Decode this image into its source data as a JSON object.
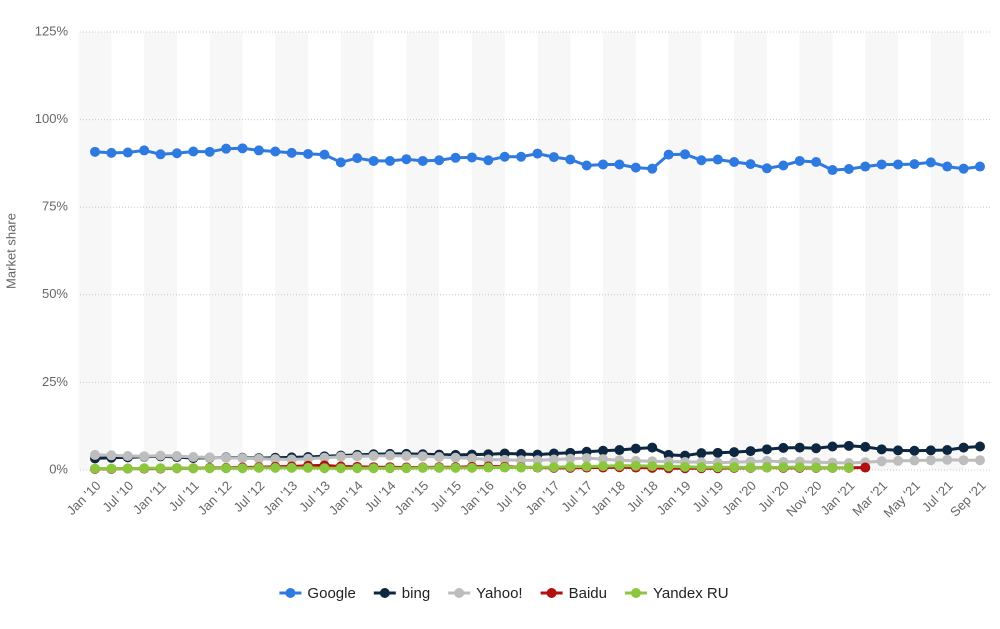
{
  "chart_data": {
    "type": "line",
    "y_label": "Market share",
    "categories": [
      "Jan '10",
      null,
      "Jul '10",
      null,
      "Jan '11",
      null,
      "Jul '11",
      null,
      "Jan '12",
      null,
      "Jul '12",
      null,
      "Jan '13",
      null,
      "Jul '13",
      null,
      "Jan '14",
      null,
      "Jul '14",
      null,
      "Jan '15",
      null,
      "Jul '15",
      null,
      "Jan '16",
      null,
      "Jul '16",
      null,
      "Jan '17",
      null,
      "Jul '17",
      null,
      "Jan '18",
      null,
      "Jul '18",
      null,
      "Jan '19",
      null,
      "Jul '19",
      null,
      "Jan '20",
      null,
      "Jul '20",
      null,
      "Nov '20",
      null,
      "Jan '21",
      null,
      "Mar '21",
      null,
      "May '21",
      null,
      "Jul '21",
      null,
      "Sep '21"
    ],
    "series": [
      {
        "name": "Google",
        "color": "#2f7ae0",
        "values": [
          90.8,
          90.5,
          90.6,
          91.2,
          90.1,
          90.4,
          90.9,
          90.8,
          91.7,
          91.8,
          91.2,
          90.9,
          90.5,
          90.2,
          90.0,
          87.8,
          89.0,
          88.2,
          88.2,
          88.7,
          88.2,
          88.4,
          89.1,
          89.2,
          88.4,
          89.4,
          89.4,
          90.3,
          89.3,
          88.6,
          86.9,
          87.2,
          87.2,
          86.3,
          86.0,
          90.0,
          90.1,
          88.4,
          88.6,
          87.9,
          87.3,
          86.1,
          86.9,
          88.2,
          87.9,
          85.6,
          85.9,
          86.6,
          87.2,
          87.2,
          87.3,
          87.8,
          86.6,
          86.0,
          86.6
        ]
      },
      {
        "name": "bing",
        "color": "#0e2740",
        "values": [
          3.3,
          3.5,
          3.6,
          3.8,
          3.9,
          3.7,
          3.4,
          3.5,
          3.6,
          3.5,
          3.4,
          3.5,
          3.6,
          3.7,
          3.9,
          4.1,
          4.3,
          4.5,
          4.6,
          4.6,
          4.5,
          4.4,
          4.3,
          4.4,
          4.5,
          4.7,
          4.6,
          4.4,
          4.7,
          4.9,
          5.2,
          5.5,
          5.7,
          6.1,
          6.4,
          4.3,
          4.1,
          4.8,
          4.9,
          5.1,
          5.4,
          5.9,
          6.3,
          6.4,
          6.2,
          6.7,
          6.9,
          6.6,
          5.9,
          5.6,
          5.5,
          5.6,
          5.7,
          6.4,
          6.7
        ]
      },
      {
        "name": "Yahoo!",
        "color": "#bdbdbd",
        "values": [
          4.3,
          4.2,
          4.0,
          3.9,
          4.1,
          4.0,
          3.7,
          3.6,
          3.5,
          3.4,
          3.2,
          3.1,
          3.0,
          3.2,
          3.5,
          3.8,
          3.9,
          4.0,
          4.1,
          4.0,
          3.9,
          3.7,
          3.5,
          3.3,
          3.0,
          2.9,
          2.8,
          2.8,
          3.0,
          3.2,
          3.4,
          3.1,
          2.8,
          2.6,
          2.5,
          2.4,
          2.3,
          2.2,
          2.1,
          2.2,
          2.4,
          2.6,
          2.3,
          2.4,
          2.2,
          2.1,
          2.0,
          2.2,
          2.5,
          2.6,
          2.7,
          2.8,
          2.9,
          2.8,
          2.8
        ]
      },
      {
        "name": "Baidu",
        "color": "#b01010",
        "values": [
          0.3,
          0.3,
          0.4,
          0.4,
          0.4,
          0.5,
          0.5,
          0.6,
          0.6,
          0.7,
          0.8,
          0.9,
          1.0,
          1.2,
          1.3,
          1.0,
          0.9,
          0.8,
          0.8,
          0.7,
          0.7,
          0.8,
          0.8,
          0.9,
          1.0,
          0.9,
          0.8,
          0.7,
          0.6,
          0.6,
          0.7,
          0.7,
          0.8,
          0.7,
          0.6,
          0.5,
          0.5,
          0.5,
          0.5,
          0.6,
          0.6,
          0.7,
          0.6,
          0.6,
          0.6,
          0.6,
          0.6,
          0.7,
          null,
          null,
          null,
          null,
          null,
          null,
          null
        ]
      },
      {
        "name": "Yandex RU",
        "color": "#8cc63f",
        "values": [
          0.4,
          0.4,
          0.4,
          0.5,
          0.5,
          0.5,
          0.5,
          0.5,
          0.5,
          0.5,
          0.6,
          0.6,
          0.6,
          0.6,
          0.5,
          0.5,
          0.5,
          0.5,
          0.5,
          0.5,
          0.6,
          0.6,
          0.6,
          0.6,
          0.7,
          0.7,
          0.7,
          0.8,
          0.8,
          0.9,
          1.0,
          1.1,
          1.2,
          1.2,
          1.1,
          1.0,
          0.9,
          0.8,
          0.8,
          0.8,
          0.7,
          0.7,
          0.8,
          0.8,
          0.7,
          0.6,
          0.6,
          null,
          null,
          null,
          null,
          null,
          null,
          null,
          null
        ]
      }
    ],
    "ylim": [
      0,
      125
    ],
    "yticks": [
      {
        "value": 0,
        "label": "0%"
      },
      {
        "value": 25,
        "label": "25%"
      },
      {
        "value": 50,
        "label": "50%"
      },
      {
        "value": 75,
        "label": "75%"
      },
      {
        "value": 100,
        "label": "100%"
      },
      {
        "value": 125,
        "label": "125%"
      }
    ],
    "grid": true,
    "legend": "bottom"
  }
}
